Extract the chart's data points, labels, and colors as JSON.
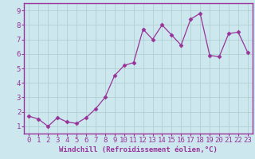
{
  "x": [
    0,
    1,
    2,
    3,
    4,
    5,
    6,
    7,
    8,
    9,
    10,
    11,
    12,
    13,
    14,
    15,
    16,
    17,
    18,
    19,
    20,
    21,
    22,
    23
  ],
  "y": [
    1.7,
    1.5,
    1.0,
    1.6,
    1.3,
    1.2,
    1.6,
    2.2,
    3.0,
    4.5,
    5.2,
    5.4,
    7.7,
    7.0,
    8.0,
    7.3,
    6.6,
    8.4,
    8.8,
    5.9,
    5.8,
    7.4,
    7.5,
    6.1
  ],
  "xlabel": "Windchill (Refroidissement éolien,°C)",
  "ylim": [
    0.5,
    9.5
  ],
  "xlim": [
    -0.5,
    23.5
  ],
  "yticks": [
    1,
    2,
    3,
    4,
    5,
    6,
    7,
    8,
    9
  ],
  "xticks": [
    0,
    1,
    2,
    3,
    4,
    5,
    6,
    7,
    8,
    9,
    10,
    11,
    12,
    13,
    14,
    15,
    16,
    17,
    18,
    19,
    20,
    21,
    22,
    23
  ],
  "line_color": "#993399",
  "marker": "D",
  "marker_size": 2.5,
  "bg_color": "#cce8ee",
  "grid_color": "#aacccc",
  "border_color": "#993399",
  "xlabel_fontsize": 6.5,
  "tick_fontsize": 6.5
}
